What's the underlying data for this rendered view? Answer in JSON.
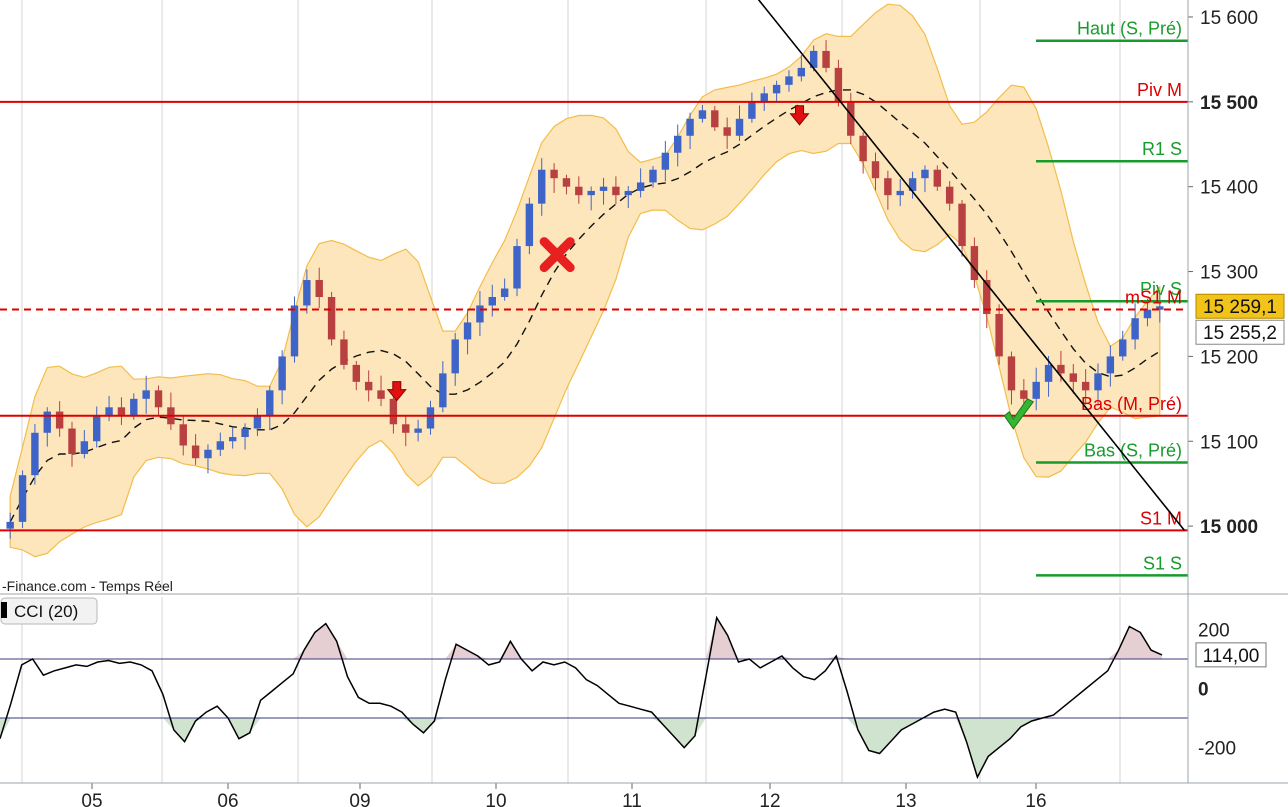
{
  "source_label": "-Finance.com - Temps Réel",
  "chart_data": [
    {
      "type": "candlestick",
      "title": "",
      "y_axis": {
        "range": [
          14920,
          15620
        ],
        "ticks": [
          {
            "value": 15600,
            "label": "15 600",
            "bold": false
          },
          {
            "value": 15500,
            "label": "15 500",
            "bold": true
          },
          {
            "value": 15400,
            "label": "15 400",
            "bold": false
          },
          {
            "value": 15300,
            "label": "15 300",
            "bold": false
          },
          {
            "value": 15200,
            "label": "15 200",
            "bold": false
          },
          {
            "value": 15100,
            "label": "15 100",
            "bold": false
          },
          {
            "value": 15000,
            "label": "15 000",
            "bold": true
          }
        ]
      },
      "x_axis": {
        "labels": [
          "05",
          "06",
          "09",
          "10",
          "11",
          "12",
          "13",
          "16"
        ]
      },
      "current_price": {
        "label": "15 259,1",
        "value": 15259.1,
        "color": "#f2c318"
      },
      "reference_price": {
        "label": "15 255,2",
        "value": 15255.2,
        "color": "#dd0000",
        "style": "dashed"
      },
      "price_series": [
        15005,
        15060,
        15110,
        15135,
        15115,
        15085,
        15100,
        15130,
        15140,
        15130,
        15150,
        15160,
        15140,
        15120,
        15095,
        15080,
        15090,
        15100,
        15105,
        15115,
        15130,
        15160,
        15200,
        15260,
        15290,
        15270,
        15220,
        15190,
        15170,
        15160,
        15150,
        15120,
        15110,
        15115,
        15140,
        15180,
        15220,
        15240,
        15260,
        15270,
        15280,
        15330,
        15380,
        15420,
        15410,
        15400,
        15390,
        15395,
        15400,
        15390,
        15395,
        15405,
        15420,
        15440,
        15460,
        15480,
        15490,
        15470,
        15460,
        15480,
        15500,
        15510,
        15520,
        15530,
        15540,
        15560,
        15540,
        15500,
        15460,
        15430,
        15410,
        15390,
        15395,
        15410,
        15420,
        15400,
        15380,
        15330,
        15290,
        15250,
        15200,
        15160,
        15150,
        15170,
        15190,
        15180,
        15170,
        15160,
        15180,
        15200,
        15220,
        15245,
        15255,
        15259
      ],
      "levels": [
        {
          "label": "Haut (S, Pré)",
          "value": 15572,
          "color": "#179c2c",
          "scope": "short"
        },
        {
          "label": "Piv M",
          "value": 15500,
          "color": "#dd0000",
          "scope": "full"
        },
        {
          "label": "R1 S",
          "value": 15430,
          "color": "#179c2c",
          "scope": "short"
        },
        {
          "label": "Piv S",
          "value": 15265,
          "color": "#179c2c",
          "scope": "short"
        },
        {
          "label": "mS1 M",
          "value": 15255,
          "color": "#dd0000",
          "scope": "none"
        },
        {
          "label": "Bas (M, Pré)",
          "value": 15130,
          "color": "#dd0000",
          "scope": "full"
        },
        {
          "label": "Bas (S, Pré)",
          "value": 15075,
          "color": "#179c2c",
          "scope": "short"
        },
        {
          "label": "S1 M",
          "value": 14995,
          "color": "#dd0000",
          "scope": "full"
        },
        {
          "label": "S1 S",
          "value": 14942,
          "color": "#179c2c",
          "scope": "short"
        }
      ],
      "trendline": {
        "from": [
          0.633,
          15630
        ],
        "to": [
          0.997,
          14995
        ],
        "color": "#000000"
      },
      "signals": [
        {
          "type": "sell-arrow",
          "x_frac": 0.334,
          "value": 15155
        },
        {
          "type": "sell-arrow",
          "x_frac": 0.673,
          "value": 15480
        },
        {
          "type": "cross",
          "x_frac": 0.469,
          "value": 15320
        },
        {
          "type": "check",
          "x_frac": 0.858,
          "value": 15130
        }
      ],
      "colors": {
        "bull": "#3f64c8",
        "bear": "#b94040",
        "band_fill": "#fde6bc",
        "band_line": "#f3bd4a",
        "grid": "#d4d4d4"
      }
    },
    {
      "type": "line",
      "title": "CCI (20)",
      "current": {
        "label": "114,00",
        "value": 114
      },
      "y_axis": {
        "range": [
          -320,
          310
        ],
        "ticks": [
          {
            "value": 200,
            "label": "200"
          },
          {
            "value": 0,
            "label": "0",
            "bold": true
          },
          {
            "value": -200,
            "label": "-200"
          }
        ],
        "overbought": 100,
        "oversold": -100
      },
      "values": [
        -170,
        -50,
        80,
        100,
        45,
        60,
        70,
        80,
        75,
        90,
        95,
        85,
        90,
        80,
        60,
        -20,
        -140,
        -180,
        -110,
        -80,
        -60,
        -100,
        -170,
        -150,
        -40,
        -10,
        20,
        50,
        130,
        190,
        220,
        160,
        40,
        -30,
        -50,
        -50,
        -60,
        -80,
        -120,
        -150,
        -110,
        30,
        150,
        130,
        110,
        80,
        90,
        160,
        100,
        60,
        90,
        80,
        90,
        70,
        30,
        10,
        -20,
        -50,
        -60,
        -70,
        -80,
        -120,
        -160,
        -200,
        -160,
        40,
        240,
        180,
        90,
        100,
        70,
        90,
        110,
        70,
        40,
        30,
        60,
        110,
        -10,
        -140,
        -210,
        -220,
        -180,
        -140,
        -120,
        -100,
        -80,
        -70,
        -80,
        -180,
        -300,
        -230,
        -200,
        -170,
        -130,
        -110,
        -100,
        -90,
        -60,
        -30,
        0,
        30,
        60,
        130,
        210,
        190,
        130,
        114
      ],
      "color": "#000000",
      "fill_over": "#e5cfd2",
      "fill_under": "#cfe3cf"
    }
  ]
}
